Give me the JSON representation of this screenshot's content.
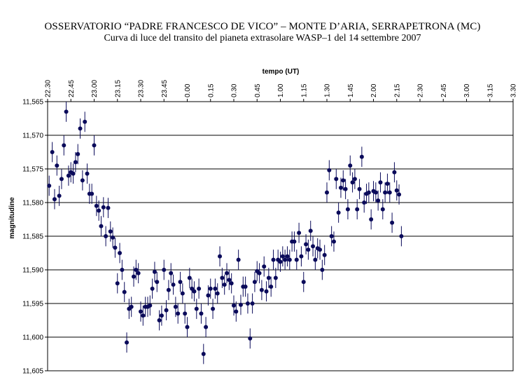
{
  "chart_data": {
    "type": "scatter",
    "title": "OSSERVATORIO “PADRE FRANCESCO DE VICO” – MONTE D’ARIA, SERRAPETRONA (MC)",
    "subtitle": "Curva di luce del transito del pianeta extrasolare WASP–1 del 14 settembre 2007",
    "xlabel": "tempo (UT)",
    "ylabel": "magnitudine",
    "x_ticks": [
      "22.30",
      "22.45",
      "23.00",
      "23.15",
      "23.30",
      "23.45",
      "0.00",
      "0.15",
      "0.30",
      "0.45",
      "1.00",
      "1.15",
      "1.30",
      "1.45",
      "2.00",
      "2.15",
      "2.30",
      "2.45",
      "3.00",
      "3.15",
      "3.30"
    ],
    "y_ticks": [
      "11,565",
      "11,570",
      "11,575",
      "11,580",
      "11,585",
      "11,590",
      "11,595",
      "11,600",
      "11,605"
    ],
    "x_axis_position": "top",
    "y_axis_reversed": true,
    "ylim": [
      11.565,
      11.605
    ],
    "grid": "horizontal",
    "legend": "none",
    "marker_color": "#0a0a5a",
    "error_bar": 0.0015,
    "points_x_unit": "minutes after 22.30 UT",
    "points": [
      [
        1,
        11.5775
      ],
      [
        3,
        11.5725
      ],
      [
        4.5,
        11.5795
      ],
      [
        6,
        11.5745
      ],
      [
        7.5,
        11.579
      ],
      [
        9,
        11.5765
      ],
      [
        10.5,
        11.5715
      ],
      [
        12,
        11.5665
      ],
      [
        13.5,
        11.576
      ],
      [
        15,
        11.5755
      ],
      [
        16.5,
        11.5757
      ],
      [
        18,
        11.574
      ],
      [
        19.5,
        11.5728
      ],
      [
        21,
        11.569
      ],
      [
        22.5,
        11.5767
      ],
      [
        24,
        11.568
      ],
      [
        25.5,
        11.5757
      ],
      [
        27,
        11.5787
      ],
      [
        28.5,
        11.5787
      ],
      [
        30,
        11.5715
      ],
      [
        31.5,
        11.5805
      ],
      [
        33,
        11.5812
      ],
      [
        34.5,
        11.5835
      ],
      [
        36,
        11.5807
      ],
      [
        37.5,
        11.585
      ],
      [
        39,
        11.5808
      ],
      [
        40.5,
        11.5843
      ],
      [
        42,
        11.5852
      ],
      [
        43.5,
        11.5867
      ],
      [
        45,
        11.592
      ],
      [
        46.5,
        11.5875
      ],
      [
        48,
        11.59
      ],
      [
        49.5,
        11.5933
      ],
      [
        51,
        11.6008
      ],
      [
        52.5,
        11.5958
      ],
      [
        54,
        11.5955
      ],
      [
        55.5,
        11.591
      ],
      [
        57,
        11.59
      ],
      [
        58.5,
        11.5905
      ],
      [
        60,
        11.5962
      ],
      [
        61.5,
        11.5968
      ],
      [
        63,
        11.5955
      ],
      [
        64.5,
        11.5955
      ],
      [
        66,
        11.5953
      ],
      [
        67.5,
        11.5928
      ],
      [
        69,
        11.5903
      ],
      [
        70.5,
        11.5918
      ],
      [
        72,
        11.5975
      ],
      [
        73.5,
        11.5968
      ],
      [
        75,
        11.59
      ],
      [
        76.5,
        11.596
      ],
      [
        78,
        11.593
      ],
      [
        79.5,
        11.5905
      ],
      [
        81,
        11.5922
      ],
      [
        82.5,
        11.5955
      ],
      [
        84,
        11.5965
      ],
      [
        85.5,
        11.5918
      ],
      [
        87,
        11.5935
      ],
      [
        88.5,
        11.5965
      ],
      [
        90,
        11.5985
      ],
      [
        91.5,
        11.5912
      ],
      [
        93,
        11.5928
      ],
      [
        94.5,
        11.5932
      ],
      [
        96,
        11.5958
      ],
      [
        97.5,
        11.5928
      ],
      [
        99,
        11.5965
      ],
      [
        100.5,
        11.6025
      ],
      [
        102,
        11.5985
      ],
      [
        103.5,
        11.5938
      ],
      [
        105,
        11.5928
      ],
      [
        106.5,
        11.5958
      ],
      [
        108,
        11.5928
      ],
      [
        109.5,
        11.5935
      ],
      [
        111,
        11.588
      ],
      [
        112.5,
        11.5912
      ],
      [
        114,
        11.5922
      ],
      [
        115.5,
        11.5905
      ],
      [
        117,
        11.5915
      ],
      [
        118.5,
        11.592
      ],
      [
        120,
        11.5953
      ],
      [
        121.5,
        11.5962
      ],
      [
        123,
        11.5885
      ],
      [
        124.5,
        11.5952
      ],
      [
        126,
        11.5925
      ],
      [
        127.5,
        11.5925
      ],
      [
        129,
        11.595
      ],
      [
        130.5,
        11.6002
      ],
      [
        132,
        11.595
      ],
      [
        133.5,
        11.5918
      ],
      [
        135,
        11.5902
      ],
      [
        136.5,
        11.5905
      ],
      [
        138,
        11.593
      ],
      [
        139.5,
        11.5895
      ],
      [
        141,
        11.5932
      ],
      [
        142.5,
        11.5912
      ],
      [
        144,
        11.5925
      ],
      [
        145.5,
        11.5885
      ],
      [
        147,
        11.5912
      ],
      [
        148.5,
        11.5885
      ],
      [
        150,
        11.5888
      ],
      [
        151.5,
        11.588
      ],
      [
        153,
        11.5885
      ],
      [
        154.5,
        11.588
      ],
      [
        156,
        11.5885
      ],
      [
        157.5,
        11.5858
      ],
      [
        159,
        11.5858
      ],
      [
        160.5,
        11.5885
      ],
      [
        162,
        11.5845
      ],
      [
        163.5,
        11.588
      ],
      [
        165,
        11.5918
      ],
      [
        166.5,
        11.5862
      ],
      [
        168,
        11.587
      ],
      [
        169.5,
        11.5842
      ],
      [
        171,
        11.5865
      ],
      [
        172.5,
        11.5885
      ],
      [
        174,
        11.5868
      ],
      [
        175.5,
        11.587
      ],
      [
        177,
        11.59
      ],
      [
        178.5,
        11.5878
      ],
      [
        180,
        11.5785
      ],
      [
        181.5,
        11.5752
      ],
      [
        183,
        11.585
      ],
      [
        184.5,
        11.5858
      ],
      [
        186,
        11.5765
      ],
      [
        187.5,
        11.5815
      ],
      [
        189,
        11.5778
      ],
      [
        190.5,
        11.5767
      ],
      [
        192,
        11.578
      ],
      [
        193.5,
        11.581
      ],
      [
        195,
        11.5745
      ],
      [
        196.5,
        11.577
      ],
      [
        198,
        11.5765
      ],
      [
        199.5,
        11.581
      ],
      [
        201,
        11.578
      ],
      [
        202.5,
        11.5732
      ],
      [
        204,
        11.58
      ],
      [
        205.5,
        11.5787
      ],
      [
        207,
        11.5785
      ],
      [
        208.5,
        11.5825
      ],
      [
        210,
        11.5783
      ],
      [
        211.5,
        11.5785
      ],
      [
        213,
        11.5797
      ],
      [
        214.5,
        11.577
      ],
      [
        216,
        11.581
      ],
      [
        217.5,
        11.5785
      ],
      [
        219,
        11.5772
      ],
      [
        220.5,
        11.5785
      ],
      [
        222,
        11.583
      ],
      [
        223.5,
        11.5755
      ],
      [
        225,
        11.5782
      ],
      [
        226.5,
        11.5788
      ],
      [
        228,
        11.585
      ]
    ]
  }
}
